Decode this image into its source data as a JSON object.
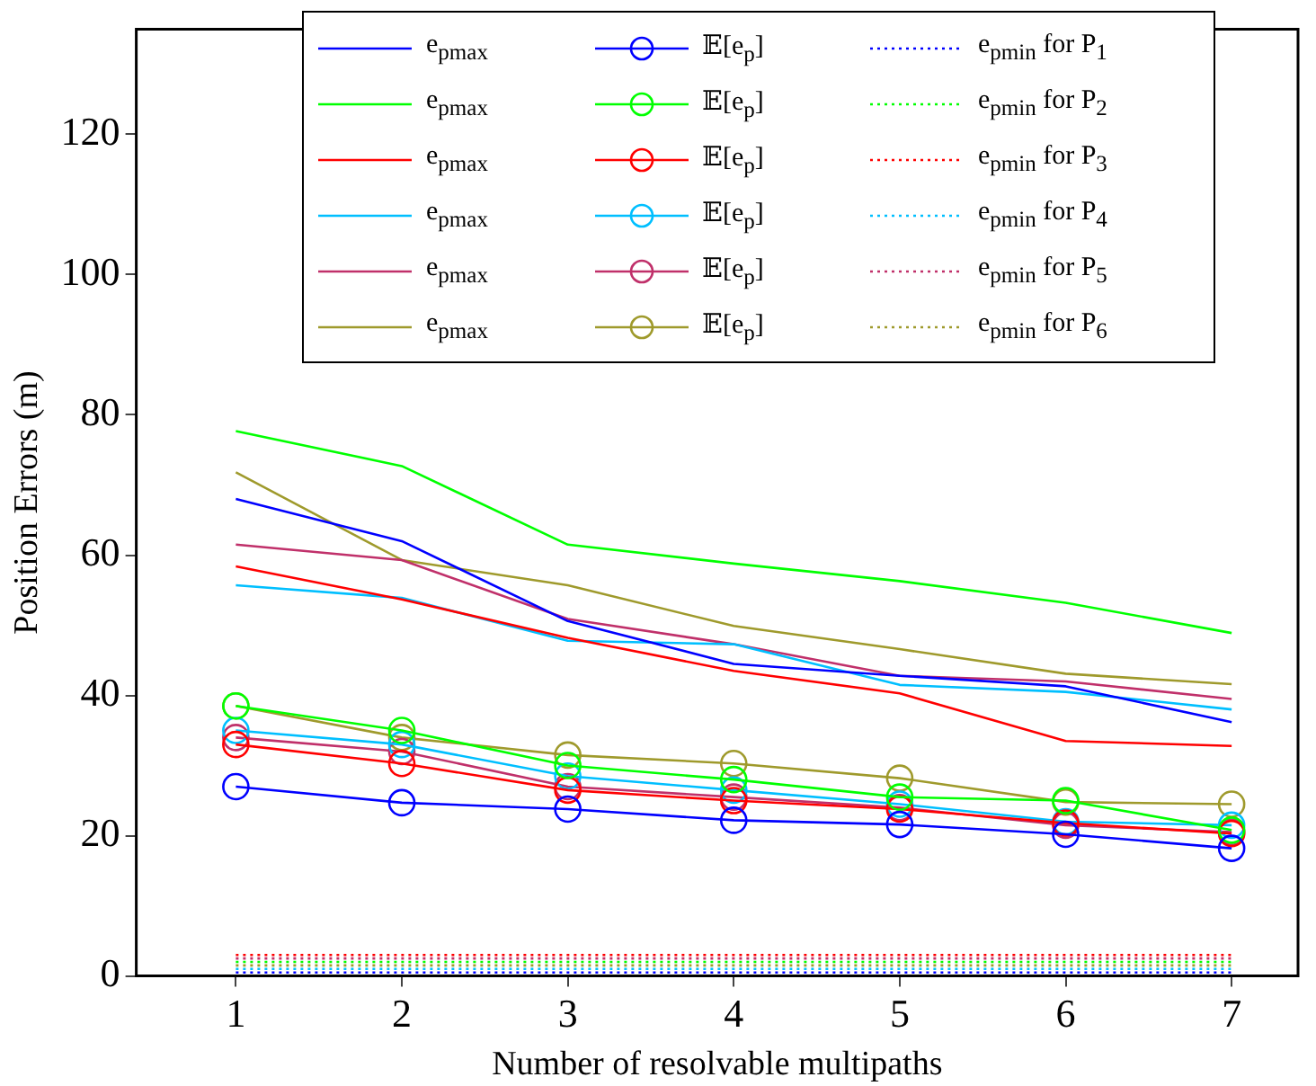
{
  "chart_data": {
    "type": "line",
    "xlabel": "Number of resolvable multipaths",
    "ylabel": "Position Errors (m)",
    "x": [
      1,
      2,
      3,
      4,
      5,
      6,
      7
    ],
    "xlim": [
      0.4,
      7.4
    ],
    "xticks": [
      1,
      2,
      3,
      4,
      5,
      6,
      7
    ],
    "ylim": [
      0,
      135
    ],
    "yticks": [
      0,
      20,
      40,
      60,
      80,
      100,
      120
    ],
    "grid": false,
    "legend": "top",
    "series": [
      {
        "name": "e$_{p}$$_{max}$",
        "color": "#0000ff",
        "line_style": "solid",
        "marker": "none",
        "values": [
          68.0,
          62.0,
          50.6,
          44.5,
          42.8,
          41.3,
          36.2
        ]
      },
      {
        "name": "𝔼[e$_{p}$]",
        "color": "#0000ff",
        "line_style": "solid",
        "marker": "circle",
        "values": [
          27,
          24.7,
          23.8,
          22.2,
          21.6,
          20.2,
          18.2
        ]
      },
      {
        "name": "e$_{p}$$_{min}$ for P$_{1}$",
        "color": "#0000ff",
        "line_style": "dotted",
        "marker": "none",
        "values": [
          0.5,
          0.5,
          0.5,
          0.5,
          0.5,
          0.5,
          0.5
        ]
      },
      {
        "name": "e$_{p}$$_{max}$",
        "color": "#00ff00",
        "line_style": "solid",
        "marker": "none",
        "values": [
          77.7,
          72.7,
          61.5,
          58.8,
          56.3,
          53.2,
          48.9
        ]
      },
      {
        "name": "𝔼[e$_{p}$]",
        "color": "#00ff00",
        "line_style": "solid",
        "marker": "circle",
        "values": [
          38.5,
          35,
          30,
          28,
          25.5,
          25,
          20.8
        ]
      },
      {
        "name": "e$_{p}$$_{min}$ for P$_{2}$",
        "color": "#00ff00",
        "line_style": "dotted",
        "marker": "none",
        "values": [
          2.0,
          2.0,
          2.0,
          2.0,
          2.0,
          2.0,
          2.0
        ]
      },
      {
        "name": "e$_{p}$$_{max}$",
        "color": "#ff0000",
        "line_style": "solid",
        "marker": "none",
        "values": [
          58.4,
          53.7,
          48.2,
          43.5,
          40.3,
          33.5,
          32.8
        ]
      },
      {
        "name": "𝔼[e$_{p}$]",
        "color": "#ff0000",
        "line_style": "solid",
        "marker": "circle",
        "values": [
          33,
          30.3,
          26.5,
          25,
          23.8,
          21.8,
          20.3
        ]
      },
      {
        "name": "e$_{p}$$_{min}$ for P$_{3}$",
        "color": "#ff0000",
        "line_style": "dotted",
        "marker": "none",
        "values": [
          3.0,
          3.0,
          3.0,
          3.0,
          3.0,
          3.0,
          3.0
        ]
      },
      {
        "name": "e$_{p}$$_{max}$",
        "color": "#00bfff",
        "line_style": "solid",
        "marker": "none",
        "values": [
          55.7,
          53.9,
          47.8,
          47.3,
          41.5,
          40.5,
          38.0
        ]
      },
      {
        "name": "𝔼[e$_{p}$]",
        "color": "#00bfff",
        "line_style": "solid",
        "marker": "circle",
        "values": [
          35,
          33,
          28.5,
          26.5,
          24.5,
          22,
          21.5
        ]
      },
      {
        "name": "e$_{p}$$_{min}$ for P$_{4}$",
        "color": "#00bfff",
        "line_style": "dotted",
        "marker": "none",
        "values": [
          1.0,
          1.0,
          1.0,
          1.0,
          1.0,
          1.0,
          1.0
        ]
      },
      {
        "name": "e$_{p}$$_{max}$",
        "color": "#c0306a",
        "line_style": "solid",
        "marker": "none",
        "values": [
          61.5,
          59.3,
          50.9,
          47.3,
          42.8,
          42.0,
          39.5
        ]
      },
      {
        "name": "𝔼[e$_{p}$]",
        "color": "#c0306a",
        "line_style": "solid",
        "marker": "circle",
        "values": [
          34,
          32,
          27,
          25.5,
          24,
          21.5,
          20.5
        ]
      },
      {
        "name": "e$_{p}$$_{min}$ for P$_{5}$",
        "color": "#c0306a",
        "line_style": "dotted",
        "marker": "none",
        "values": [
          2.5,
          2.5,
          2.5,
          2.5,
          2.5,
          2.5,
          2.5
        ]
      },
      {
        "name": "e$_{p}$$_{max}$",
        "color": "#9f9a2c",
        "line_style": "solid",
        "marker": "none",
        "values": [
          71.8,
          59.3,
          55.7,
          49.9,
          46.6,
          43.1,
          41.6
        ]
      },
      {
        "name": "𝔼[e$_{p}$]",
        "color": "#9f9a2c",
        "line_style": "solid",
        "marker": "circle",
        "values": [
          38.5,
          34,
          31.5,
          30.3,
          28.2,
          24.8,
          24.5
        ]
      },
      {
        "name": "e$_{p}$$_{min}$ for P$_{6}$",
        "color": "#9f9a2c",
        "line_style": "dotted",
        "marker": "none",
        "values": [
          1.5,
          1.5,
          1.5,
          1.5,
          1.5,
          1.5,
          1.5
        ]
      }
    ]
  }
}
